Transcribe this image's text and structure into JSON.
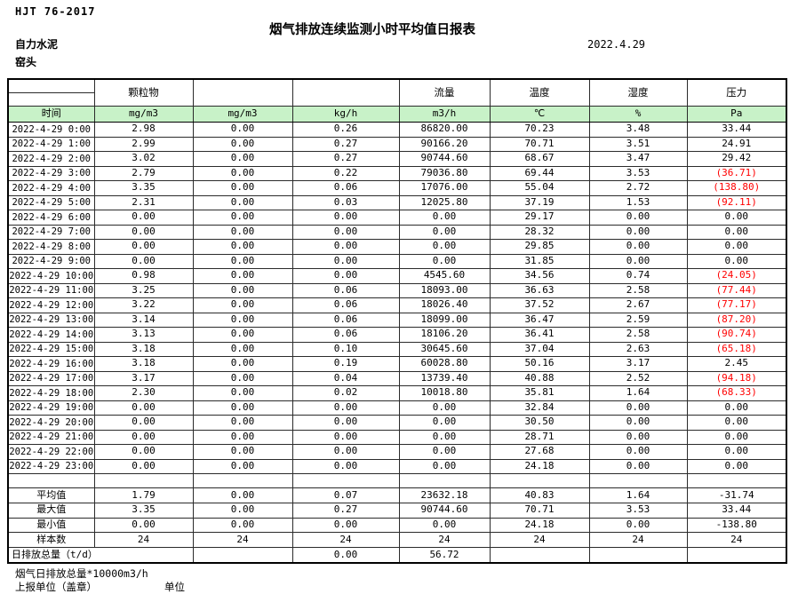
{
  "page": {
    "standard_code": "HJT  76-2017",
    "title": "烟气排放连续监测小时平均值日报表",
    "date": "2022.4.29",
    "company": "自力水泥",
    "station": "窑头"
  },
  "table": {
    "header_fill": "#c8f2c8",
    "negative_color": "#ff0000",
    "group_headers": [
      "",
      "颗粒物",
      "",
      "",
      "流量",
      "温度",
      "湿度",
      "压力"
    ],
    "unit_headers": [
      "时间",
      "mg/m3",
      "mg/m3",
      "kg/h",
      "m3/h",
      "℃",
      "%",
      "Pa"
    ],
    "rows": [
      [
        "2022-4-29 0:00",
        "2.98",
        "0.00",
        "0.26",
        "86820.00",
        "70.23",
        "3.48",
        "33.44"
      ],
      [
        "2022-4-29 1:00",
        "2.99",
        "0.00",
        "0.27",
        "90166.20",
        "70.71",
        "3.51",
        "24.91"
      ],
      [
        "2022-4-29 2:00",
        "3.02",
        "0.00",
        "0.27",
        "90744.60",
        "68.67",
        "3.47",
        "29.42"
      ],
      [
        "2022-4-29 3:00",
        "2.79",
        "0.00",
        "0.22",
        "79036.80",
        "69.44",
        "3.53",
        "(36.71)"
      ],
      [
        "2022-4-29 4:00",
        "3.35",
        "0.00",
        "0.06",
        "17076.00",
        "55.04",
        "2.72",
        "(138.80)"
      ],
      [
        "2022-4-29 5:00",
        "2.31",
        "0.00",
        "0.03",
        "12025.80",
        "37.19",
        "1.53",
        "(92.11)"
      ],
      [
        "2022-4-29 6:00",
        "0.00",
        "0.00",
        "0.00",
        "0.00",
        "29.17",
        "0.00",
        "0.00"
      ],
      [
        "2022-4-29 7:00",
        "0.00",
        "0.00",
        "0.00",
        "0.00",
        "28.32",
        "0.00",
        "0.00"
      ],
      [
        "2022-4-29 8:00",
        "0.00",
        "0.00",
        "0.00",
        "0.00",
        "29.85",
        "0.00",
        "0.00"
      ],
      [
        "2022-4-29 9:00",
        "0.00",
        "0.00",
        "0.00",
        "0.00",
        "31.85",
        "0.00",
        "0.00"
      ],
      [
        "2022-4-29 10:00",
        "0.98",
        "0.00",
        "0.00",
        "4545.60",
        "34.56",
        "0.74",
        "(24.05)"
      ],
      [
        "2022-4-29 11:00",
        "3.25",
        "0.00",
        "0.06",
        "18093.00",
        "36.63",
        "2.58",
        "(77.44)"
      ],
      [
        "2022-4-29 12:00",
        "3.22",
        "0.00",
        "0.06",
        "18026.40",
        "37.52",
        "2.67",
        "(77.17)"
      ],
      [
        "2022-4-29 13:00",
        "3.14",
        "0.00",
        "0.06",
        "18099.00",
        "36.47",
        "2.59",
        "(87.20)"
      ],
      [
        "2022-4-29 14:00",
        "3.13",
        "0.00",
        "0.06",
        "18106.20",
        "36.41",
        "2.58",
        "(90.74)"
      ],
      [
        "2022-4-29 15:00",
        "3.18",
        "0.00",
        "0.10",
        "30645.60",
        "37.04",
        "2.63",
        "(65.18)"
      ],
      [
        "2022-4-29 16:00",
        "3.18",
        "0.00",
        "0.19",
        "60028.80",
        "50.16",
        "3.17",
        "2.45"
      ],
      [
        "2022-4-29 17:00",
        "3.17",
        "0.00",
        "0.04",
        "13739.40",
        "40.88",
        "2.52",
        "(94.18)"
      ],
      [
        "2022-4-29 18:00",
        "2.30",
        "0.00",
        "0.02",
        "10018.80",
        "35.81",
        "1.64",
        "(68.33)"
      ],
      [
        "2022-4-29 19:00",
        "0.00",
        "0.00",
        "0.00",
        "0.00",
        "32.84",
        "0.00",
        "0.00"
      ],
      [
        "2022-4-29 20:00",
        "0.00",
        "0.00",
        "0.00",
        "0.00",
        "30.50",
        "0.00",
        "0.00"
      ],
      [
        "2022-4-29 21:00",
        "0.00",
        "0.00",
        "0.00",
        "0.00",
        "28.71",
        "0.00",
        "0.00"
      ],
      [
        "2022-4-29 22:00",
        "0.00",
        "0.00",
        "0.00",
        "0.00",
        "27.68",
        "0.00",
        "0.00"
      ],
      [
        "2022-4-29 23:00",
        "0.00",
        "0.00",
        "0.00",
        "0.00",
        "24.18",
        "0.00",
        "0.00"
      ]
    ],
    "summary_rows": [
      [
        "平均值",
        "1.79",
        "0.00",
        "0.07",
        "23632.18",
        "40.83",
        "1.64",
        "-31.74"
      ],
      [
        "最大值",
        "3.35",
        "0.00",
        "0.27",
        "90744.60",
        "70.71",
        "3.53",
        "33.44"
      ],
      [
        "最小值",
        "0.00",
        "0.00",
        "0.00",
        "0.00",
        "24.18",
        "0.00",
        "-138.80"
      ],
      [
        "样本数",
        "24",
        "24",
        "24",
        "24",
        "24",
        "24",
        "24"
      ]
    ],
    "daily_total_row": {
      "label": "日排放总量（t/d）",
      "cells": [
        "",
        "0.00",
        "56.72",
        "",
        "",
        ""
      ]
    }
  },
  "footer": {
    "note": "烟气日排放总量*10000m3/h",
    "report_unit_label": "上报单位（盖章）",
    "unit_label": "单位"
  }
}
